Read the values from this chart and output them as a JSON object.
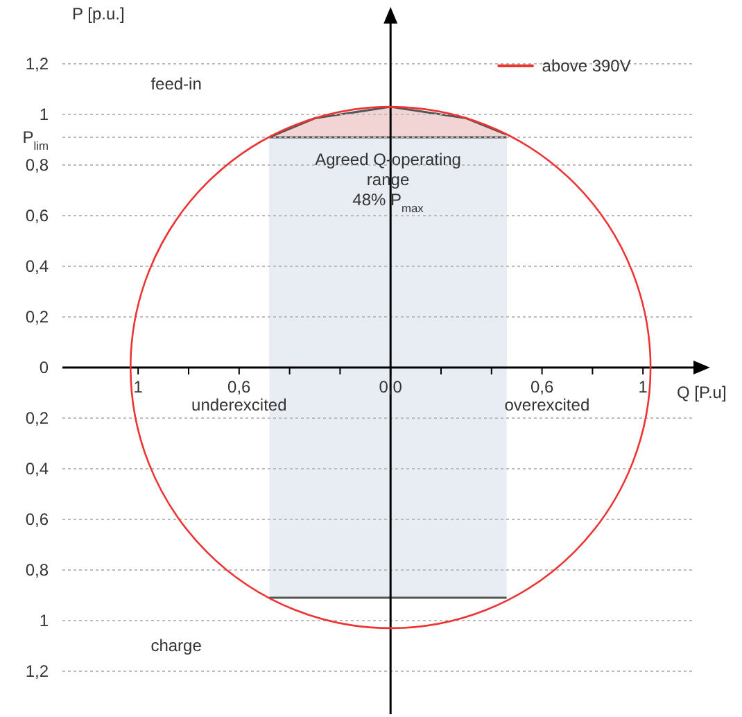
{
  "chart_data": {
    "type": "area",
    "ylabel": "P [p.u.]",
    "xlabel": "Q [P.u]",
    "xlim": [
      -1.3,
      1.2
    ],
    "ylim": [
      -1.37,
      1.37
    ],
    "xticks": [
      {
        "value": -1,
        "label": "1"
      },
      {
        "value": -0.8,
        "label": null
      },
      {
        "value": -0.6,
        "label": "0,6"
      },
      {
        "value": -0.4,
        "label": null
      },
      {
        "value": -0.2,
        "label": null
      },
      {
        "value": 0,
        "label": "0,0"
      },
      {
        "value": 0.2,
        "label": null
      },
      {
        "value": 0.4,
        "label": null
      },
      {
        "value": 0.6,
        "label": "0,6"
      },
      {
        "value": 0.8,
        "label": null
      },
      {
        "value": 1,
        "label": "1"
      }
    ],
    "yticks": [
      {
        "value": -1.2,
        "label": "1,2"
      },
      {
        "value": -1,
        "label": "1"
      },
      {
        "value": -0.8,
        "label": "0,8"
      },
      {
        "value": -0.6,
        "label": "0,6"
      },
      {
        "value": -0.4,
        "label": "0,4"
      },
      {
        "value": -0.2,
        "label": "0,2"
      },
      0,
      {
        "value": 0.2,
        "label": "0,2"
      },
      {
        "value": 0.4,
        "label": "0,4"
      },
      {
        "value": 0.6,
        "label": "0,6"
      },
      {
        "value": 0.8,
        "label": "0,8"
      },
      {
        "value": 0.91,
        "label": "P$_{lim}$"
      },
      {
        "value": 1,
        "label": "1"
      },
      {
        "value": 1.2,
        "label": "1,2"
      }
    ],
    "grid": "y",
    "series": [
      {
        "color": "#f2d4d4",
        "x": [
          -0.48,
          -0.3,
          0,
          0.3,
          0.46
        ],
        "values": [
          0.91,
          0.985,
          1.03,
          0.985,
          0.92
        ]
      },
      {
        "color": "#e8ecf3",
        "x": [
          -0.48,
          0.46
        ],
        "values": [
          0.91,
          0.91
        ]
      },
      {
        "color": "#e8ecf3",
        "x": [
          -0.48,
          0.46
        ],
        "values": [
          -0.91,
          -0.91
        ]
      }
    ],
    "annotations": [
      "feed-in",
      "charge",
      "underexcited",
      "overexcited",
      "Agreed Q-operating",
      "range",
      "48% P$_{max}$",
      "above 390V"
    ]
  }
}
